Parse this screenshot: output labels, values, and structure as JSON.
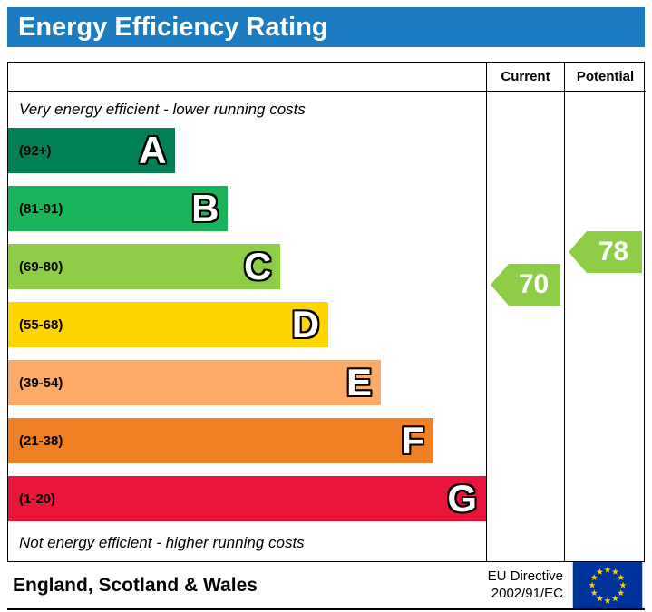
{
  "title_bar": {
    "label": "Energy Efficiency Rating"
  },
  "colors": {
    "header_bg": "#1b7cc2",
    "border": "#000000"
  },
  "table": {
    "columns": {
      "current": "Current",
      "potential": "Potential"
    },
    "top_note": "Very energy efficient - lower running costs",
    "bottom_note": "Not energy efficient - higher running costs"
  },
  "chart_data": {
    "type": "bar",
    "title": "Energy Efficiency Rating",
    "categories": [
      "A",
      "B",
      "C",
      "D",
      "E",
      "F",
      "G"
    ],
    "bands": [
      {
        "letter": "A",
        "range": "(92+)",
        "min": 92,
        "max": 100,
        "color": "#008054",
        "width_pct": 35
      },
      {
        "letter": "B",
        "range": "(81-91)",
        "min": 81,
        "max": 91,
        "color": "#19b459",
        "width_pct": 46
      },
      {
        "letter": "C",
        "range": "(69-80)",
        "min": 69,
        "max": 80,
        "color": "#8dce46",
        "width_pct": 57
      },
      {
        "letter": "D",
        "range": "(55-68)",
        "min": 55,
        "max": 68,
        "color": "#ffd500",
        "width_pct": 67
      },
      {
        "letter": "E",
        "range": "(39-54)",
        "min": 39,
        "max": 54,
        "color": "#fcaa65",
        "width_pct": 78
      },
      {
        "letter": "F",
        "range": "(21-38)",
        "min": 21,
        "max": 38,
        "color": "#ef8023",
        "width_pct": 89
      },
      {
        "letter": "G",
        "range": "(1-20)",
        "min": 1,
        "max": 20,
        "color": "#e9153b",
        "width_pct": 100
      }
    ],
    "current": {
      "label": "Current",
      "value": 70,
      "band": "C",
      "color": "#8dce46"
    },
    "potential": {
      "label": "Potential",
      "value": 78,
      "band": "C",
      "color": "#8dce46"
    }
  },
  "footer": {
    "region": "England, Scotland & Wales",
    "directive_line1": "EU Directive",
    "directive_line2": "2002/91/EC",
    "flag": "eu-flag"
  }
}
